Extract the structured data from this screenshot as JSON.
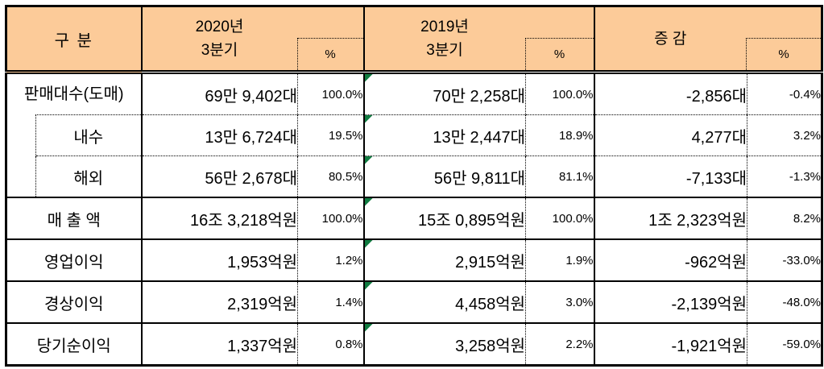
{
  "table": {
    "header": {
      "category": "구  분",
      "groups": [
        {
          "line1": "2020년",
          "line2": "3분기",
          "pct": "%"
        },
        {
          "line1": "2019년",
          "line2": "3분기",
          "pct": "%"
        },
        {
          "line1": "증 감",
          "line2": "",
          "pct": "%"
        }
      ]
    },
    "rows": [
      {
        "label": "판매대수(도매)",
        "v2020": "69만 9,402대",
        "p2020": "100.0%",
        "v2019": "70만 2,258대",
        "p2019": "100.0%",
        "vdiff": "-2,856대",
        "pdiff": "-0.4%"
      },
      {
        "label": "내수",
        "v2020": "13만 6,724대",
        "p2020": "19.5%",
        "v2019": "13만 2,447대",
        "p2019": "18.9%",
        "vdiff": "4,277대",
        "pdiff": "3.2%"
      },
      {
        "label": "해외",
        "v2020": "56만 2,678대",
        "p2020": "80.5%",
        "v2019": "56만 9,811대",
        "p2019": "81.1%",
        "vdiff": "-7,133대",
        "pdiff": "-1.3%"
      },
      {
        "label": "매 출 액",
        "v2020": "16조 3,218억원",
        "p2020": "100.0%",
        "v2019": "15조 0,895억원",
        "p2019": "100.0%",
        "vdiff": "1조 2,323억원",
        "pdiff": "8.2%"
      },
      {
        "label": "영업이익",
        "v2020": "1,953억원",
        "p2020": "1.2%",
        "v2019": "2,915억원",
        "p2019": "1.9%",
        "vdiff": "-962억원",
        "pdiff": "-33.0%"
      },
      {
        "label": "경상이익",
        "v2020": "2,319억원",
        "p2020": "1.4%",
        "v2019": "4,458억원",
        "p2019": "3.0%",
        "vdiff": "-2,139억원",
        "pdiff": "-48.0%"
      },
      {
        "label": "당기순이익",
        "v2020": "1,337억원",
        "p2020": "0.8%",
        "v2019": "3,258억원",
        "p2019": "2.2%",
        "vdiff": "-1,921억원",
        "pdiff": "-59.0%"
      }
    ],
    "colors": {
      "header_bg": "#FCCB99",
      "border": "#000000",
      "error_indicator": "#107C41",
      "background": "#FFFFFF"
    }
  }
}
